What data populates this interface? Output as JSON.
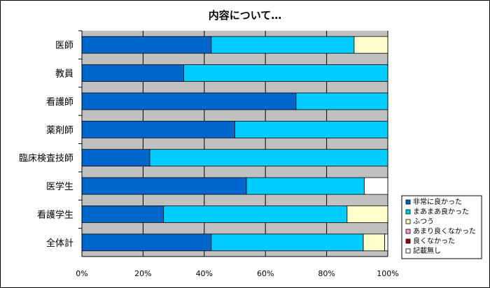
{
  "chart_data": {
    "type": "bar",
    "orientation": "horizontal",
    "stacked": true,
    "title": "内容について…",
    "categories": [
      "医師",
      "教員",
      "看護師",
      "薬剤師",
      "臨床検査技師",
      "医学生",
      "看護学生",
      "全体計"
    ],
    "series": [
      {
        "name": "非常に良かった",
        "color": "#0066cc",
        "values": [
          42.3,
          33.3,
          70.0,
          50.0,
          22.2,
          53.8,
          26.7,
          42.3
        ]
      },
      {
        "name": "まあまあ良かった",
        "color": "#00ccff",
        "values": [
          46.7,
          66.7,
          30.0,
          50.0,
          77.8,
          38.5,
          60.0,
          49.7
        ]
      },
      {
        "name": "ふつう",
        "color": "#ffffcc",
        "values": [
          11.0,
          0,
          0,
          0,
          0,
          0,
          13.3,
          7.0
        ]
      },
      {
        "name": "あまり良くなかった",
        "color": "#ff99cc",
        "values": [
          0,
          0,
          0,
          0,
          0,
          0,
          0,
          0
        ]
      },
      {
        "name": "良くなかった",
        "color": "#990000",
        "values": [
          0,
          0,
          0,
          0,
          0,
          0,
          0,
          0
        ]
      },
      {
        "name": "記載無し",
        "color": "#ffffff",
        "values": [
          0,
          0,
          0,
          0,
          0,
          7.7,
          0,
          1.0
        ]
      }
    ],
    "xlim": [
      0,
      100
    ],
    "xticks": [
      "0%",
      "20%",
      "40%",
      "60%",
      "80%",
      "100%"
    ],
    "grid": true,
    "legend_position": "right-bottom",
    "plot_background": "#c0c0c0"
  }
}
